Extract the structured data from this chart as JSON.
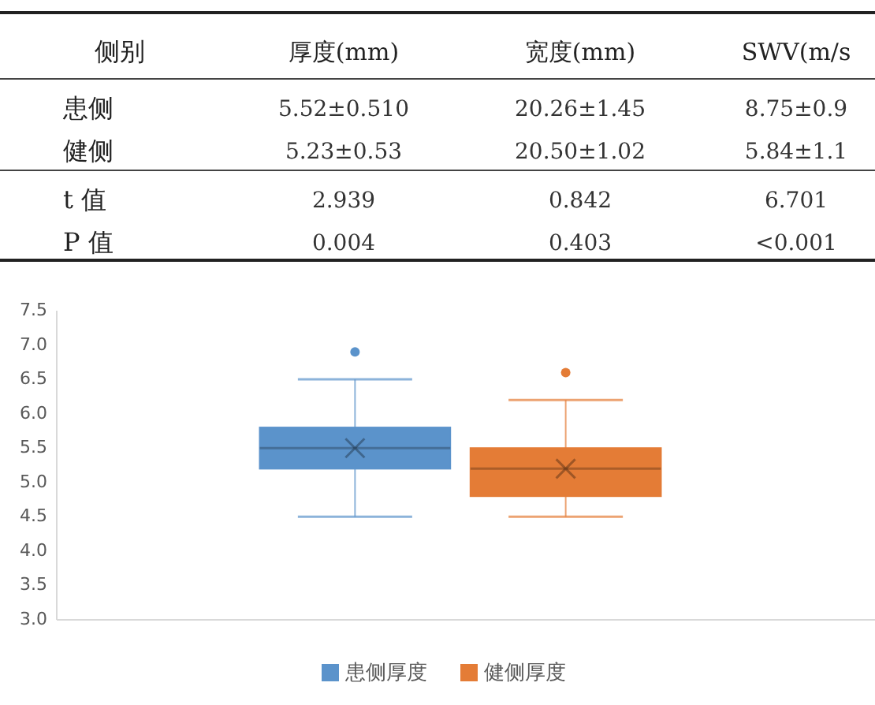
{
  "chart_data": [
    {
      "type": "other",
      "ylabel": "侧别",
      "categories": [
        "厚度(mm)",
        "宽度(mm)",
        "SWV(m/s"
      ],
      "y_categories": [
        "患侧",
        "健侧",
        "t 值",
        "P 值"
      ],
      "cell_labels": [
        [
          "5.52±0.510",
          "20.26±1.45",
          "8.75±0.9"
        ],
        [
          "5.23±0.53",
          "20.50±1.02",
          "5.84±1.1"
        ],
        [
          "2.939",
          "0.842",
          "6.701"
        ],
        [
          "0.004",
          "0.403",
          "<0.001"
        ]
      ]
    },
    {
      "type": "box",
      "categories": [
        null
      ],
      "ylim": [
        3.0,
        7.5
      ],
      "yticks": [
        {
          "value": 3,
          "label": "3.0"
        },
        {
          "value": 3.5,
          "label": "3.5"
        },
        {
          "value": 4,
          "label": "4.0"
        },
        {
          "value": 4.5,
          "label": "4.5"
        },
        {
          "value": 5,
          "label": "5.0"
        },
        {
          "value": 5.5,
          "label": "5.5"
        },
        {
          "value": 6,
          "label": "6.0"
        },
        {
          "value": 6.5,
          "label": "6.5"
        },
        {
          "value": 7,
          "label": "7.0"
        },
        {
          "value": 7.5,
          "label": "7.5"
        }
      ],
      "legend": "bottom",
      "marker": "circle",
      "grid": false,
      "series": [
        {
          "name": "患侧厚度",
          "color": "#5b93cb",
          "boxes": [
            {
              "low": 4.5,
              "q1": 5.2,
              "median": 5.5,
              "q3": 5.8,
              "high": 6.5,
              "mean": 5.5,
              "outliers": [
                6.9
              ]
            }
          ]
        },
        {
          "name": "健侧厚度",
          "color": "#e47c36",
          "boxes": [
            {
              "low": 4.5,
              "q1": 4.8,
              "median": 5.2,
              "q3": 5.5,
              "high": 6.2,
              "mean": 5.2,
              "outliers": [
                6.6
              ]
            }
          ]
        }
      ]
    }
  ]
}
